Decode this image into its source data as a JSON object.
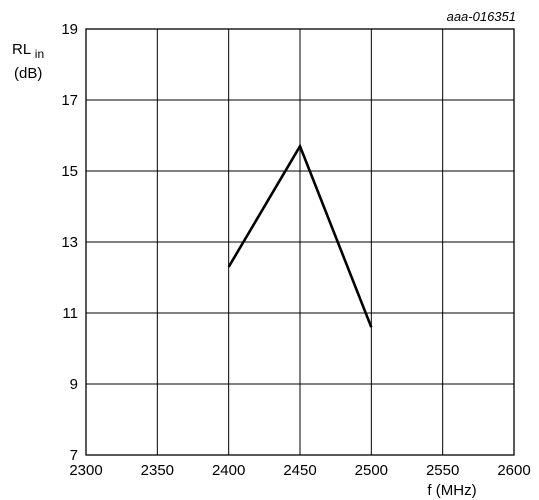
{
  "chart_data": {
    "type": "line",
    "figure_code": "aaa-016351",
    "xlabel": "f (MHz)",
    "ylabel_main": "RL",
    "ylabel_sub": "in",
    "ylabel_unit": "(dB)",
    "xlim": [
      2300,
      2600
    ],
    "ylim": [
      7,
      19
    ],
    "xticks": [
      2300,
      2350,
      2400,
      2450,
      2500,
      2550,
      2600
    ],
    "yticks": [
      7,
      9,
      11,
      13,
      15,
      17,
      19
    ],
    "grid": true,
    "series": [
      {
        "x": [
          2400,
          2450,
          2500
        ],
        "y": [
          12.3,
          15.7,
          10.6
        ]
      }
    ]
  }
}
